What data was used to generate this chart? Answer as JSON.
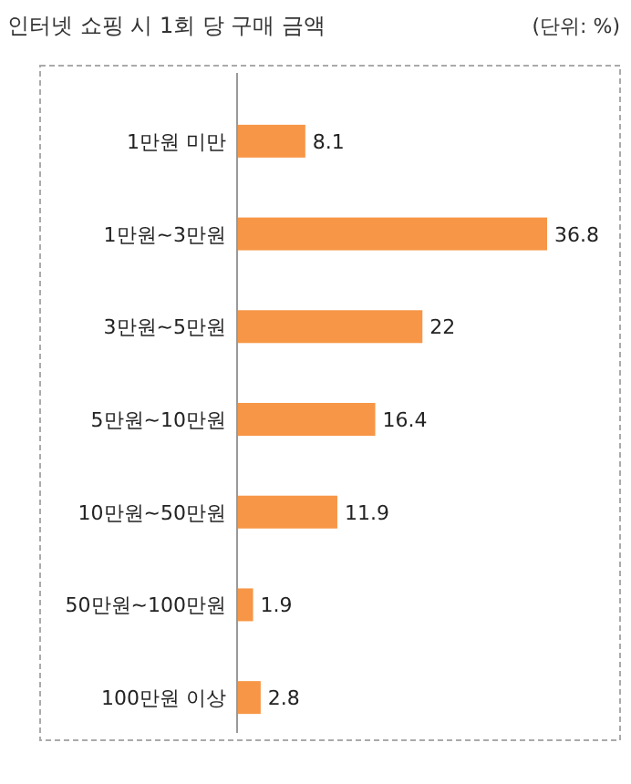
{
  "chart_data": {
    "type": "bar",
    "orientation": "horizontal",
    "title": "인터넷 쇼핑 시 1회 당 구매 금액",
    "annotations": [
      "(단위: %)"
    ],
    "categories": [
      "1만원 미만",
      "1만원~3만원",
      "3만원~5만원",
      "5만원~10만원",
      "10만원~50만원",
      "50만원~100만원",
      "100만원 이상"
    ],
    "values": [
      8.1,
      36.8,
      22,
      16.4,
      11.9,
      1.9,
      2.8
    ],
    "color": "#f79646",
    "data_labels": true
  }
}
